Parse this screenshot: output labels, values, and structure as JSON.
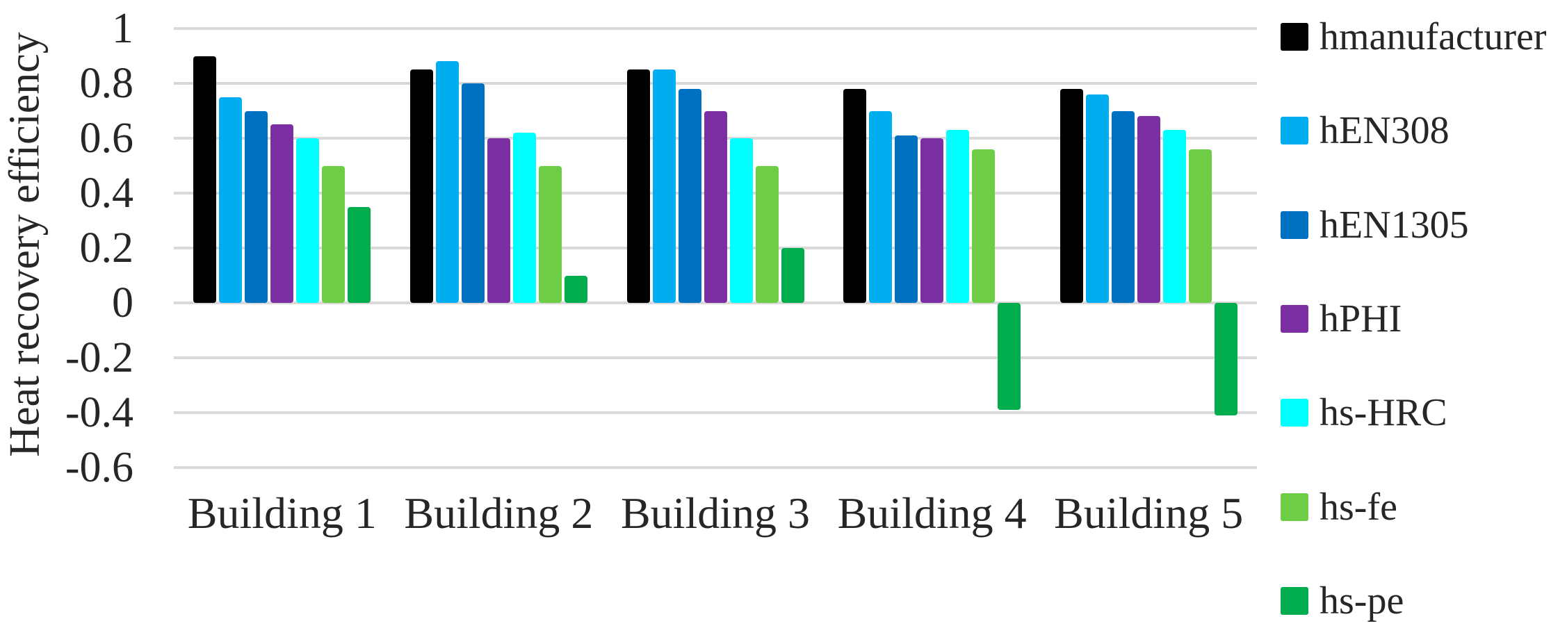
{
  "chart_data": {
    "type": "bar",
    "title": "",
    "xlabel": "",
    "ylabel": "Heat recovery efficiency",
    "categories": [
      "Building 1",
      "Building 2",
      "Building 3",
      "Building 4",
      "Building 5"
    ],
    "series": [
      {
        "name": "hmanufacturer",
        "color": "#000000",
        "values": [
          0.9,
          0.85,
          0.85,
          0.78,
          0.78
        ]
      },
      {
        "name": "hEN308",
        "color": "#00AEEF",
        "values": [
          0.75,
          0.88,
          0.85,
          0.7,
          0.76
        ]
      },
      {
        "name": "hEN1305",
        "color": "#0070C0",
        "values": [
          0.7,
          0.8,
          0.78,
          0.61,
          0.7
        ]
      },
      {
        "name": "hPHI",
        "color": "#7B2FA2",
        "values": [
          0.65,
          0.6,
          0.7,
          0.6,
          0.68
        ]
      },
      {
        "name": "hs-HRC",
        "color": "#00FFFF",
        "values": [
          0.6,
          0.62,
          0.6,
          0.63,
          0.63
        ]
      },
      {
        "name": "hs-fe",
        "color": "#6DCE46",
        "values": [
          0.5,
          0.5,
          0.5,
          0.56,
          0.56
        ]
      },
      {
        "name": "hs-pe",
        "color": "#00AC4C",
        "values": [
          0.35,
          0.1,
          0.2,
          -0.39,
          -0.41
        ]
      }
    ],
    "ylim": [
      -0.6,
      1.0
    ],
    "yticks": [
      {
        "label": "1",
        "value": 1.0
      },
      {
        "label": "0.8",
        "value": 0.8
      },
      {
        "label": "0.6",
        "value": 0.6
      },
      {
        "label": "0.4",
        "value": 0.4
      },
      {
        "label": "0.2",
        "value": 0.2
      },
      {
        "label": "0",
        "value": 0.0
      },
      {
        "label": "-0.2",
        "value": -0.2
      },
      {
        "label": "-0.4",
        "value": -0.4
      },
      {
        "label": "-0.6",
        "value": -0.6
      }
    ],
    "grid": "horizontal",
    "gridline_color": "#D9D9D9",
    "legend_position": "right",
    "background": "#FFFFFF"
  }
}
